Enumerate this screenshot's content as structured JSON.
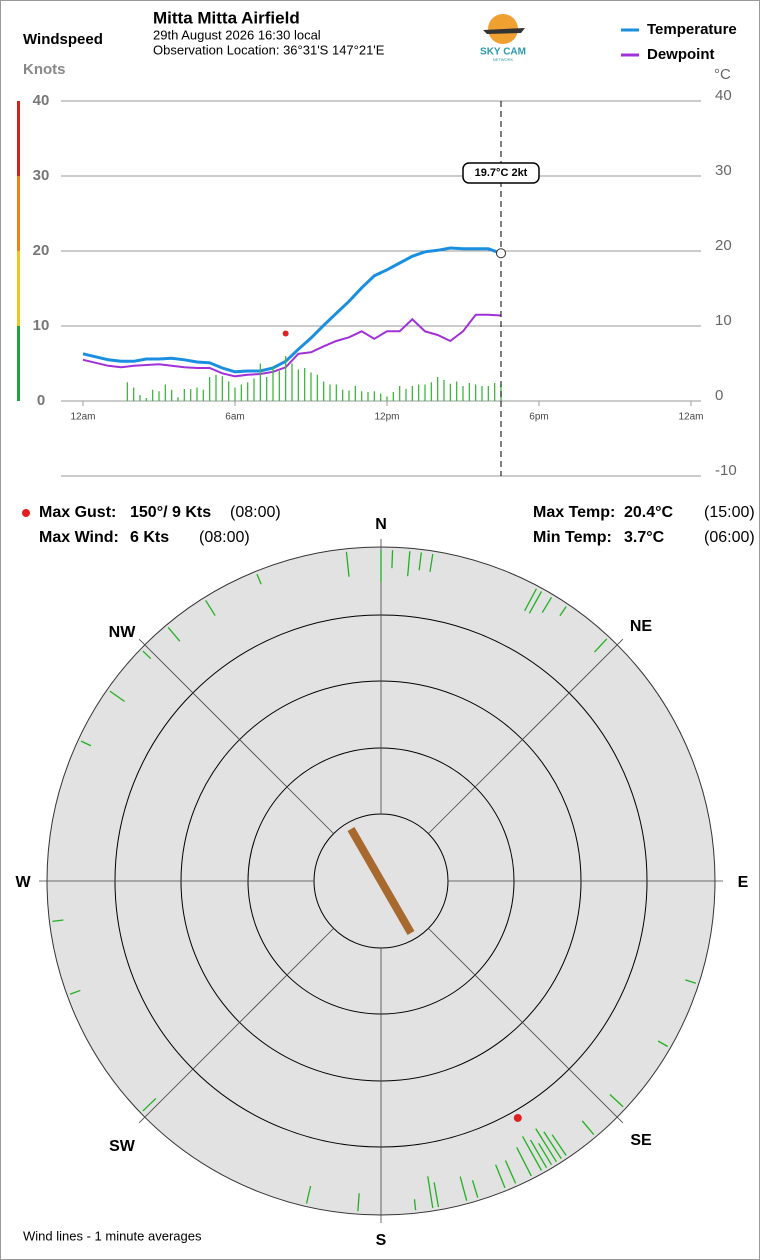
{
  "header": {
    "title": "Mitta Mitta Airfield",
    "date": "29th August 2026  16:30 local",
    "location": "Observation Location: 36°31'S 147°21'E",
    "logo": "SKY CAM",
    "logo_sub": "NETWORK"
  },
  "stats": [
    {
      "label": "Max Gust:",
      "value": "150°/  9 Kts",
      "time": "(08:00)"
    },
    {
      "label": "Max Wind:",
      "value": "6 Kts",
      "time": "(08:00)"
    },
    {
      "label": "Max Temp:",
      "value": "20.4°C",
      "time": "(15:00)"
    },
    {
      "label": "Min Temp:",
      "value": "3.7°C",
      "time": "(06:00)"
    }
  ],
  "chart_data": [
    {
      "type": "line",
      "y_title": "Windspeed",
      "y_unit": "Knots",
      "y2_unit": "°C",
      "xlim": [
        0,
        24
      ],
      "xticks": [
        {
          "value": 0,
          "label": "12am"
        },
        {
          "value": 6,
          "label": "6am"
        },
        {
          "value": 12,
          "label": "12pm"
        },
        {
          "value": 18,
          "label": "6pm"
        },
        {
          "value": 24,
          "label": "12am"
        }
      ],
      "ylim": [
        0,
        40
      ],
      "yticks": [
        0,
        10,
        20,
        30,
        40
      ],
      "y2lim": [
        -10,
        40
      ],
      "y2ticks": [
        -10,
        0,
        10,
        20,
        30,
        40
      ],
      "grid": true,
      "legend_position": "top-right",
      "series": [
        {
          "name": "Temperature",
          "color": "#1a8fe0",
          "axis": "y2",
          "x": [
            0,
            0.5,
            1,
            1.5,
            2,
            2.5,
            3,
            3.5,
            4,
            4.5,
            5,
            5.5,
            6,
            6.5,
            7,
            7.5,
            8,
            8.5,
            9,
            9.5,
            10,
            10.5,
            11,
            11.5,
            12,
            12.5,
            13,
            13.5,
            14,
            14.5,
            15,
            15.5,
            16,
            16.5
          ],
          "values": [
            6.3,
            5.9,
            5.5,
            5.3,
            5.3,
            5.6,
            5.6,
            5.7,
            5.5,
            5.2,
            5.1,
            4.4,
            3.9,
            4.0,
            4.0,
            4.4,
            5.3,
            6.9,
            8.4,
            10.1,
            11.7,
            13.3,
            15.1,
            16.7,
            17.5,
            18.4,
            19.3,
            19.9,
            20.1,
            20.4,
            20.3,
            20.3,
            20.3,
            19.7
          ]
        },
        {
          "name": "Dewpoint",
          "color": "#a030d8",
          "axis": "y2",
          "x": [
            0,
            0.5,
            1,
            1.5,
            2,
            2.5,
            3,
            3.5,
            4,
            4.5,
            5,
            5.5,
            6,
            6.5,
            7,
            7.5,
            8,
            8.5,
            9,
            9.5,
            10,
            10.5,
            11,
            11.5,
            12,
            12.5,
            13,
            13.5,
            14,
            14.5,
            15,
            15.5,
            16,
            16.5
          ],
          "values": [
            5.5,
            5.1,
            4.7,
            4.5,
            4.7,
            4.8,
            4.9,
            4.7,
            4.5,
            4.4,
            4.4,
            3.7,
            3.3,
            3.5,
            3.6,
            3.9,
            4.5,
            6.3,
            6.5,
            7.3,
            8.0,
            8.5,
            9.3,
            8.3,
            9.3,
            9.3,
            10.9,
            9.3,
            8.8,
            8.0,
            9.3,
            11.5,
            11.5,
            11.4
          ]
        },
        {
          "type": "bar",
          "color": "#3cb83c",
          "x": [
            1.75,
            2,
            2.25,
            2.5,
            2.75,
            3,
            3.25,
            3.5,
            3.75,
            4,
            4.25,
            4.5,
            4.75,
            5,
            5.25,
            5.5,
            5.75,
            6,
            6.25,
            6.5,
            6.75,
            7,
            7.25,
            7.5,
            7.75,
            8,
            8.25,
            8.5,
            8.75,
            9,
            9.25,
            9.5,
            9.75,
            10,
            10.25,
            10.5,
            10.75,
            11,
            11.25,
            11.5,
            11.75,
            12,
            12.25,
            12.5,
            12.75,
            13,
            13.25,
            13.5,
            13.75,
            14,
            14.25,
            14.5,
            14.75,
            15,
            15.25,
            15.5,
            15.75,
            16,
            16.25,
            16.5
          ],
          "values": [
            2.5,
            1.8,
            0.8,
            0.4,
            1.5,
            1.3,
            2.2,
            1.5,
            0.5,
            1.6,
            1.6,
            1.8,
            1.5,
            3.2,
            3.5,
            3.3,
            2.6,
            1.8,
            2.2,
            2.5,
            3.0,
            5.0,
            3.2,
            4.5,
            4.0,
            6.0,
            5.0,
            4.2,
            4.4,
            3.8,
            3.5,
            2.6,
            2.2,
            2.2,
            1.5,
            1.4,
            2.0,
            1.3,
            1.2,
            1.3,
            1.0,
            0.6,
            1.2,
            2.0,
            1.6,
            2.0,
            2.2,
            2.2,
            2.5,
            3.2,
            2.8,
            2.3,
            2.6,
            2.0,
            2.4,
            2.2,
            2.0,
            2.0,
            2.4,
            2.2
          ]
        },
        {
          "type": "scatter",
          "color": "#e02020",
          "x": [
            8
          ],
          "values": [
            9
          ]
        }
      ],
      "cursor": {
        "x": 16.5,
        "label": "19.7°C  2kt"
      }
    },
    {
      "type": "polar",
      "compass": [
        "N",
        "NE",
        "E",
        "SE",
        "S",
        "SW",
        "W",
        "NW"
      ],
      "wind_lines": {
        "color": "#22b022",
        "directions": [
          354,
          0,
          2,
          5,
          7,
          9,
          338,
          328,
          320,
          314,
          305,
          295,
          263,
          250,
          226,
          193,
          184,
          174,
          171,
          170,
          165,
          163,
          158,
          156,
          153,
          151,
          150,
          149,
          148,
          147,
          146,
          140,
          133,
          120,
          108,
          28,
          29,
          31,
          34,
          43
        ],
        "speeds": [
          3,
          4,
          2,
          3,
          2,
          2,
          1,
          2,
          2,
          1,
          2,
          1,
          1,
          1,
          2,
          2,
          2,
          1,
          4,
          3,
          3,
          2,
          3,
          3,
          4,
          5,
          4,
          3,
          5,
          4,
          3,
          2,
          2,
          1,
          1,
          3,
          3,
          2,
          1,
          2
        ]
      },
      "gust": {
        "direction": 150,
        "speed": 9,
        "color": "#e02020"
      },
      "current_direction": 150,
      "current_color": "#a8692e",
      "note": "Wind lines - 1 minute averages"
    }
  ]
}
